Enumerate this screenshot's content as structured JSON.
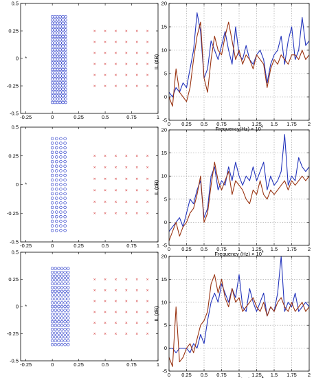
{
  "chart_data": [
    {
      "type": "scatter",
      "panel": "geometry-a",
      "xlim": [
        -0.3,
        1.0
      ],
      "ylim": [
        -0.5,
        0.5
      ],
      "xticks": [
        "-0.25",
        "0",
        "0.25",
        "0.5",
        "0.75",
        "1"
      ],
      "xtick_values": [
        -0.25,
        0,
        0.25,
        0.5,
        0.75,
        1
      ],
      "yticks": [
        "0.5",
        "0.25",
        "0",
        "-0.25",
        "-0.5"
      ],
      "ytick_values": [
        0.5,
        0.25,
        0,
        -0.25,
        -0.5
      ],
      "source_marker": {
        "x": -0.25,
        "y": 0
      },
      "scatterer_array": {
        "columns": [
          0.0,
          0.025,
          0.05,
          0.075,
          0.1,
          0.125
        ],
        "y_min": -0.4,
        "y_max": 0.4,
        "y_step": 0.03,
        "marker": "circle",
        "color": "#3344cc"
      },
      "receiver_grid": {
        "x": [
          0.4,
          0.5,
          0.6,
          0.7,
          0.8,
          0.9
        ],
        "y": [
          0.25,
          0.15,
          0.05,
          -0.05,
          -0.15,
          -0.25
        ],
        "marker": "x",
        "color": "#dd6666"
      },
      "grid": false
    },
    {
      "type": "line",
      "panel": "il-a",
      "xlabel": "Frequency(Hz)",
      "xlabel_exponent": "4",
      "ylabel": "IL (dB)",
      "xlim": [
        0,
        2
      ],
      "ylim": [
        -5,
        20
      ],
      "xticks": [
        "0",
        "0.25",
        "0.5",
        "0.75",
        "1",
        "1.25",
        "1.5",
        "1.75",
        "2"
      ],
      "xtick_values": [
        0,
        0.25,
        0.5,
        0.75,
        1,
        1.25,
        1.5,
        1.75,
        2
      ],
      "yticks": [
        "20",
        "15",
        "10",
        "5",
        "0",
        "-5"
      ],
      "ytick_values": [
        20,
        15,
        10,
        5,
        0,
        -5
      ],
      "grid": true,
      "series": [
        {
          "color": "#2233bb",
          "x": [
            0,
            0.05,
            0.1,
            0.15,
            0.2,
            0.25,
            0.3,
            0.35,
            0.4,
            0.45,
            0.5,
            0.55,
            0.6,
            0.65,
            0.7,
            0.75,
            0.8,
            0.85,
            0.9,
            0.95,
            1.0,
            1.05,
            1.1,
            1.15,
            1.2,
            1.25,
            1.3,
            1.35,
            1.4,
            1.45,
            1.5,
            1.55,
            1.6,
            1.65,
            1.7,
            1.75,
            1.8,
            1.85,
            1.9,
            1.95,
            2.0
          ],
          "values": [
            1,
            0,
            2,
            1,
            3,
            2,
            6,
            10,
            18,
            14,
            4,
            6,
            12,
            10,
            8,
            11,
            14,
            10,
            7,
            15,
            9,
            8,
            11,
            8,
            7,
            9,
            10,
            8,
            3,
            7,
            9,
            10,
            13,
            7,
            12,
            15,
            8,
            10,
            17,
            11,
            12
          ]
        },
        {
          "color": "#993311",
          "x": [
            0,
            0.05,
            0.1,
            0.15,
            0.2,
            0.25,
            0.3,
            0.35,
            0.4,
            0.45,
            0.5,
            0.55,
            0.6,
            0.65,
            0.7,
            0.75,
            0.8,
            0.85,
            0.9,
            0.95,
            1.0,
            1.05,
            1.1,
            1.15,
            1.2,
            1.25,
            1.3,
            1.35,
            1.4,
            1.45,
            1.5,
            1.55,
            1.6,
            1.65,
            1.7,
            1.75,
            1.8,
            1.85,
            1.9,
            1.95,
            2.0
          ],
          "values": [
            0,
            -2,
            6,
            1,
            0,
            -1,
            2,
            8,
            13,
            16,
            4,
            1,
            8,
            13,
            10,
            9,
            13,
            16,
            12,
            8,
            10,
            7,
            9,
            8,
            6,
            9,
            8,
            7,
            2,
            6,
            8,
            7,
            9,
            8,
            7,
            9,
            9,
            8,
            10,
            8,
            9
          ]
        }
      ]
    },
    {
      "type": "scatter",
      "panel": "geometry-b",
      "xlim": [
        -0.3,
        1.0
      ],
      "ylim": [
        -0.5,
        0.5
      ],
      "xticks": [
        "-0.25",
        "0",
        "0.25",
        "0.5",
        "0.75",
        "1"
      ],
      "xtick_values": [
        -0.25,
        0,
        0.25,
        0.5,
        0.75,
        1
      ],
      "yticks": [
        "0.5",
        "0.25",
        "0",
        "-0.25",
        "-0.5"
      ],
      "ytick_values": [
        0.5,
        0.25,
        0,
        -0.25,
        -0.5
      ],
      "source_marker": {
        "x": -0.25,
        "y": 0
      },
      "scatterer_array": {
        "columns": [
          0.0,
          0.04,
          0.08,
          0.12
        ],
        "y_min": -0.4,
        "y_max": 0.4,
        "y_step": 0.04,
        "marker": "circle",
        "color": "#3344cc"
      },
      "receiver_grid": {
        "x": [
          0.4,
          0.5,
          0.6,
          0.7,
          0.8,
          0.9
        ],
        "y": [
          0.25,
          0.15,
          0.05,
          -0.05,
          -0.15,
          -0.25
        ],
        "marker": "x",
        "color": "#dd6666"
      },
      "grid": false
    },
    {
      "type": "line",
      "panel": "il-b",
      "xlabel": "Frequency (Hz)",
      "xlabel_exponent": "4",
      "ylabel": "IL (dB)",
      "xlim": [
        0,
        2
      ],
      "ylim": [
        -5,
        20
      ],
      "xticks": [
        "0",
        "0.25",
        "0.5",
        "0.75",
        "1",
        "1.25",
        "1.5",
        "1.75",
        "2"
      ],
      "xtick_values": [
        0,
        0.25,
        0.5,
        0.75,
        1,
        1.25,
        1.5,
        1.75,
        2
      ],
      "yticks": [
        "20",
        "15",
        "10",
        "5",
        "0",
        "-5"
      ],
      "ytick_values": [
        20,
        15,
        10,
        5,
        0,
        -5
      ],
      "grid": true,
      "series": [
        {
          "color": "#2233bb",
          "x": [
            0,
            0.05,
            0.1,
            0.15,
            0.2,
            0.25,
            0.3,
            0.35,
            0.4,
            0.45,
            0.5,
            0.55,
            0.6,
            0.65,
            0.7,
            0.75,
            0.8,
            0.85,
            0.9,
            0.95,
            1.0,
            1.05,
            1.1,
            1.15,
            1.2,
            1.25,
            1.3,
            1.35,
            1.4,
            1.45,
            1.5,
            1.55,
            1.6,
            1.65,
            1.7,
            1.75,
            1.8,
            1.85,
            1.9,
            1.95,
            2.0
          ],
          "values": [
            -2,
            -1,
            0,
            1,
            -1,
            2,
            5,
            4,
            7,
            9,
            1,
            3,
            10,
            12,
            7,
            9,
            8,
            12,
            9,
            13,
            10,
            8,
            10,
            9,
            12,
            9,
            11,
            13,
            7,
            10,
            8,
            9,
            11,
            19,
            8,
            10,
            9,
            14,
            12,
            11,
            12
          ]
        },
        {
          "color": "#993311",
          "x": [
            0,
            0.05,
            0.1,
            0.15,
            0.2,
            0.25,
            0.3,
            0.35,
            0.4,
            0.45,
            0.5,
            0.55,
            0.6,
            0.65,
            0.7,
            0.75,
            0.8,
            0.85,
            0.9,
            0.95,
            1.0,
            1.05,
            1.1,
            1.15,
            1.2,
            1.25,
            1.3,
            1.35,
            1.4,
            1.45,
            1.5,
            1.55,
            1.6,
            1.65,
            1.7,
            1.75,
            1.8,
            1.85,
            1.9,
            1.95,
            2.0
          ],
          "values": [
            -4,
            -2,
            0,
            -3,
            -1,
            0,
            2,
            3,
            6,
            10,
            0,
            2,
            8,
            13,
            9,
            7,
            9,
            11,
            6,
            9,
            8,
            7,
            5,
            4,
            7,
            6,
            9,
            6,
            5,
            7,
            6,
            7,
            8,
            9,
            7,
            9,
            8,
            9,
            10,
            9,
            10
          ]
        }
      ]
    },
    {
      "type": "scatter",
      "panel": "geometry-c",
      "xlim": [
        -0.3,
        1.0
      ],
      "ylim": [
        -0.5,
        0.5
      ],
      "xticks": [
        "-0.25",
        "0",
        "0.25",
        "0.5",
        "0.75",
        "1"
      ],
      "xtick_values": [
        -0.25,
        0,
        0.25,
        0.5,
        0.75,
        1
      ],
      "yticks": [
        "0.5",
        "0.25",
        "0",
        "-0.25",
        "-0.5"
      ],
      "ytick_values": [
        0.5,
        0.25,
        0,
        -0.25,
        -0.5
      ],
      "source_marker": {
        "x": -0.25,
        "y": 0
      },
      "scatterer_array": {
        "columns": [
          0.0,
          0.03,
          0.06,
          0.09,
          0.12,
          0.15
        ],
        "y_min": -0.35,
        "y_max": 0.35,
        "y_step": 0.035,
        "marker": "circle",
        "color": "#3344cc"
      },
      "receiver_grid": {
        "x": [
          0.4,
          0.5,
          0.6,
          0.7,
          0.8,
          0.9
        ],
        "y": [
          0.25,
          0.15,
          0.05,
          -0.05,
          -0.15,
          -0.25
        ],
        "marker": "x",
        "color": "#dd6666"
      },
      "grid": false
    },
    {
      "type": "line",
      "panel": "il-c",
      "xlabel": "Frequency (Hz)",
      "xlabel_exponent": "4",
      "ylabel": "IL (dB)",
      "xlim": [
        0,
        2
      ],
      "ylim": [
        -5,
        20
      ],
      "xticks": [
        "0",
        "0.25",
        "0.5",
        "0.75",
        "1",
        "1.25",
        "1.5",
        "1.75",
        "2"
      ],
      "xtick_values": [
        0,
        0.25,
        0.5,
        0.75,
        1,
        1.25,
        1.5,
        1.75,
        2
      ],
      "yticks": [
        "20",
        "15",
        "10",
        "5",
        "0",
        "-5"
      ],
      "ytick_values": [
        20,
        15,
        10,
        5,
        0,
        -5
      ],
      "grid": true,
      "series": [
        {
          "color": "#2233bb",
          "x": [
            0,
            0.05,
            0.1,
            0.15,
            0.2,
            0.25,
            0.3,
            0.35,
            0.4,
            0.45,
            0.5,
            0.55,
            0.6,
            0.65,
            0.7,
            0.75,
            0.8,
            0.85,
            0.9,
            0.95,
            1.0,
            1.05,
            1.1,
            1.15,
            1.2,
            1.25,
            1.3,
            1.35,
            1.4,
            1.45,
            1.5,
            1.55,
            1.6,
            1.65,
            1.7,
            1.75,
            1.8,
            1.85,
            1.9,
            1.95,
            2.0
          ],
          "values": [
            0,
            0,
            -1,
            0,
            0,
            0,
            -1,
            1,
            0,
            3,
            1,
            6,
            10,
            12,
            10,
            14,
            12,
            10,
            13,
            11,
            16,
            9,
            8,
            13,
            10,
            8,
            10,
            12,
            7,
            9,
            8,
            12,
            20,
            8,
            10,
            9,
            12,
            8,
            9,
            10,
            9
          ]
        },
        {
          "color": "#993311",
          "x": [
            0,
            0.05,
            0.1,
            0.15,
            0.2,
            0.25,
            0.3,
            0.35,
            0.4,
            0.45,
            0.5,
            0.55,
            0.6,
            0.65,
            0.7,
            0.75,
            0.8,
            0.85,
            0.9,
            0.95,
            1.0,
            1.05,
            1.1,
            1.15,
            1.2,
            1.25,
            1.3,
            1.35,
            1.4,
            1.45,
            1.5,
            1.55,
            1.6,
            1.65,
            1.7,
            1.75,
            1.8,
            1.85,
            1.9,
            1.95,
            2.0
          ],
          "values": [
            -2,
            -4,
            9,
            -3,
            -2,
            0,
            1,
            -1,
            2,
            5,
            6,
            8,
            14,
            16,
            12,
            15,
            11,
            9,
            13,
            10,
            11,
            8,
            9,
            10,
            11,
            9,
            8,
            10,
            7,
            9,
            8,
            10,
            11,
            9,
            8,
            10,
            8,
            9,
            10,
            8,
            9
          ]
        }
      ]
    }
  ]
}
